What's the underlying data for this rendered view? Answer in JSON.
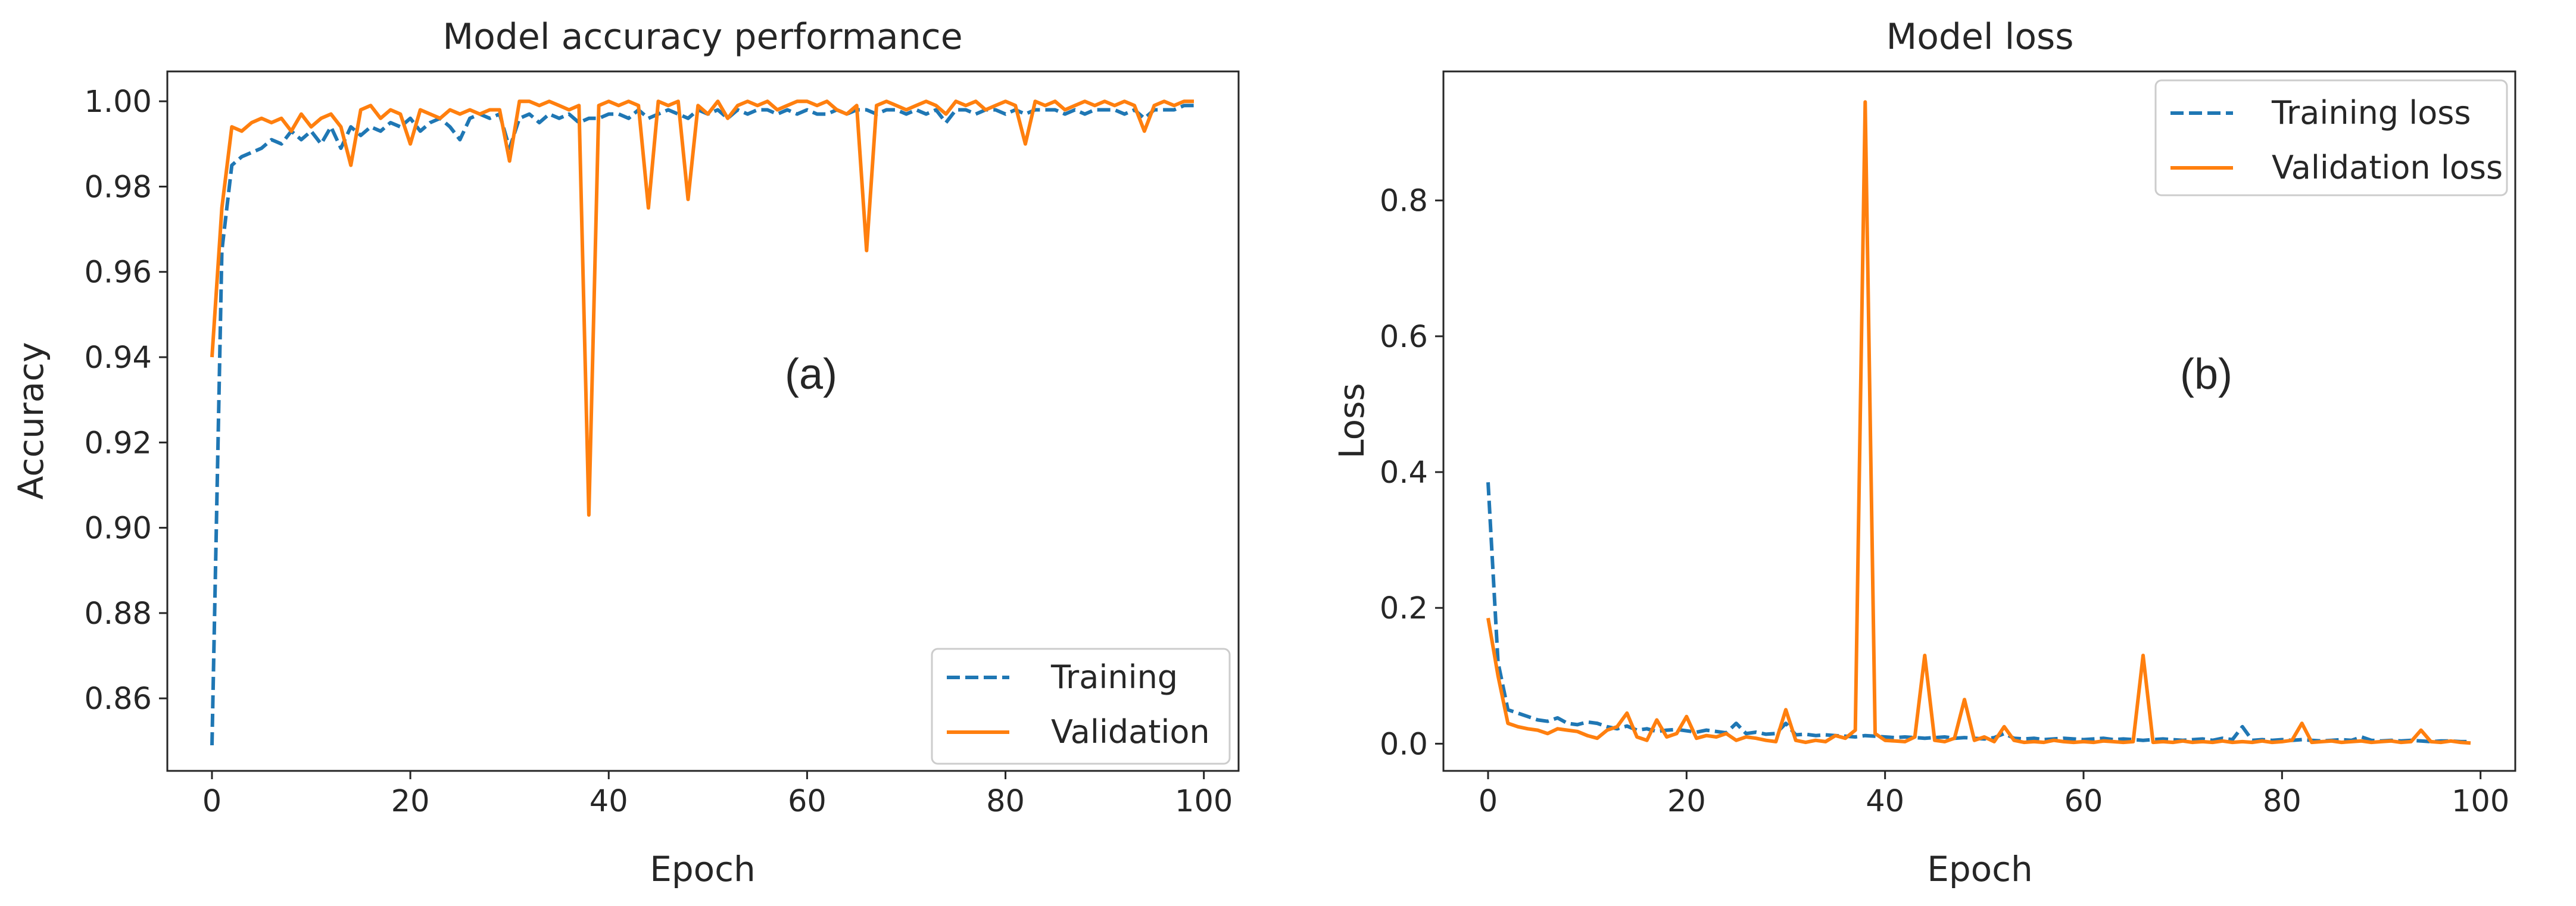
{
  "chart_data": [
    {
      "type": "line",
      "title": "Model accuracy performance",
      "xlabel": "Epoch",
      "ylabel": "Accuracy",
      "annotation": "(a)",
      "xlim": [
        -4.5,
        103.5
      ],
      "ylim": [
        0.843,
        1.007
      ],
      "xticks": [
        0,
        20,
        40,
        60,
        80,
        100
      ],
      "yticks": [
        0.86,
        0.88,
        0.9,
        0.92,
        0.94,
        0.96,
        0.98,
        1.0
      ],
      "ytick_labels": [
        "0.86",
        "0.88",
        "0.90",
        "0.92",
        "0.94",
        "0.96",
        "0.98",
        "1.00"
      ],
      "legend_position": "lower-right",
      "series": [
        {
          "name": "Training",
          "color": "#1f77b4",
          "dash": "dashed",
          "x": [
            0,
            1,
            2,
            3,
            4,
            5,
            6,
            7,
            8,
            9,
            10,
            11,
            12,
            13,
            14,
            15,
            16,
            17,
            18,
            19,
            20,
            21,
            22,
            23,
            24,
            25,
            26,
            27,
            28,
            29,
            30,
            31,
            32,
            33,
            34,
            35,
            36,
            37,
            38,
            39,
            40,
            41,
            42,
            43,
            44,
            45,
            46,
            47,
            48,
            49,
            50,
            51,
            52,
            53,
            54,
            55,
            56,
            57,
            58,
            59,
            60,
            61,
            62,
            63,
            64,
            65,
            66,
            67,
            68,
            69,
            70,
            71,
            72,
            73,
            74,
            75,
            76,
            77,
            78,
            79,
            80,
            81,
            82,
            83,
            84,
            85,
            86,
            87,
            88,
            89,
            90,
            91,
            92,
            93,
            94,
            95,
            96,
            97,
            98,
            99
          ],
          "values": [
            0.849,
            0.965,
            0.985,
            0.987,
            0.988,
            0.989,
            0.991,
            0.99,
            0.993,
            0.991,
            0.993,
            0.99,
            0.994,
            0.989,
            0.994,
            0.992,
            0.994,
            0.993,
            0.995,
            0.994,
            0.996,
            0.993,
            0.995,
            0.996,
            0.994,
            0.991,
            0.996,
            0.997,
            0.996,
            0.997,
            0.989,
            0.996,
            0.997,
            0.995,
            0.997,
            0.996,
            0.997,
            0.995,
            0.996,
            0.996,
            0.997,
            0.997,
            0.996,
            0.998,
            0.996,
            0.997,
            0.998,
            0.997,
            0.996,
            0.998,
            0.997,
            0.998,
            0.996,
            0.998,
            0.997,
            0.998,
            0.998,
            0.997,
            0.998,
            0.997,
            0.998,
            0.997,
            0.997,
            0.998,
            0.997,
            0.998,
            0.998,
            0.997,
            0.998,
            0.998,
            0.997,
            0.998,
            0.997,
            0.998,
            0.995,
            0.998,
            0.998,
            0.997,
            0.998,
            0.998,
            0.997,
            0.998,
            0.997,
            0.998,
            0.998,
            0.998,
            0.997,
            0.998,
            0.997,
            0.998,
            0.998,
            0.998,
            0.997,
            0.998,
            0.996,
            0.998,
            0.998,
            0.998,
            0.999,
            0.999
          ]
        },
        {
          "name": "Validation",
          "color": "#ff7f0e",
          "dash": "solid",
          "x": [
            0,
            1,
            2,
            3,
            4,
            5,
            6,
            7,
            8,
            9,
            10,
            11,
            12,
            13,
            14,
            15,
            16,
            17,
            18,
            19,
            20,
            21,
            22,
            23,
            24,
            25,
            26,
            27,
            28,
            29,
            30,
            31,
            32,
            33,
            34,
            35,
            36,
            37,
            38,
            39,
            40,
            41,
            42,
            43,
            44,
            45,
            46,
            47,
            48,
            49,
            50,
            51,
            52,
            53,
            54,
            55,
            56,
            57,
            58,
            59,
            60,
            61,
            62,
            63,
            64,
            65,
            66,
            67,
            68,
            69,
            70,
            71,
            72,
            73,
            74,
            75,
            76,
            77,
            78,
            79,
            80,
            81,
            82,
            83,
            84,
            85,
            86,
            87,
            88,
            89,
            90,
            91,
            92,
            93,
            94,
            95,
            96,
            97,
            98,
            99
          ],
          "values": [
            0.94,
            0.975,
            0.994,
            0.993,
            0.995,
            0.996,
            0.995,
            0.996,
            0.993,
            0.997,
            0.994,
            0.996,
            0.997,
            0.994,
            0.985,
            0.998,
            0.999,
            0.996,
            0.998,
            0.997,
            0.99,
            0.998,
            0.997,
            0.996,
            0.998,
            0.997,
            0.998,
            0.997,
            0.998,
            0.998,
            0.986,
            1.0,
            1.0,
            0.999,
            1.0,
            0.999,
            0.998,
            0.999,
            0.903,
            0.999,
            1.0,
            0.999,
            1.0,
            0.999,
            0.975,
            1.0,
            0.999,
            1.0,
            0.977,
            0.999,
            0.997,
            1.0,
            0.996,
            0.999,
            1.0,
            0.999,
            1.0,
            0.998,
            0.999,
            1.0,
            1.0,
            0.999,
            1.0,
            0.998,
            0.997,
            0.999,
            0.965,
            0.999,
            1.0,
            0.999,
            0.998,
            0.999,
            1.0,
            0.999,
            0.997,
            1.0,
            0.999,
            1.0,
            0.998,
            0.999,
            1.0,
            0.999,
            0.99,
            1.0,
            0.999,
            1.0,
            0.998,
            0.999,
            1.0,
            0.999,
            1.0,
            0.999,
            1.0,
            0.999,
            0.993,
            0.999,
            1.0,
            0.999,
            1.0,
            1.0
          ]
        }
      ]
    },
    {
      "type": "line",
      "title": "Model loss",
      "xlabel": "Epoch",
      "ylabel": "Loss",
      "annotation": "(b)",
      "xlim": [
        -4.5,
        103.5
      ],
      "ylim": [
        -0.04,
        0.99
      ],
      "xticks": [
        0,
        20,
        40,
        60,
        80,
        100
      ],
      "yticks": [
        0.0,
        0.2,
        0.4,
        0.6,
        0.8
      ],
      "ytick_labels": [
        "0.0",
        "0.2",
        "0.4",
        "0.6",
        "0.8"
      ],
      "legend_position": "upper-right",
      "series": [
        {
          "name": "Training loss",
          "color": "#1f77b4",
          "dash": "dashed",
          "x": [
            0,
            1,
            2,
            3,
            4,
            5,
            6,
            7,
            8,
            9,
            10,
            11,
            12,
            13,
            14,
            15,
            16,
            17,
            18,
            19,
            20,
            21,
            22,
            23,
            24,
            25,
            26,
            27,
            28,
            29,
            30,
            31,
            32,
            33,
            34,
            35,
            36,
            37,
            38,
            39,
            40,
            41,
            42,
            43,
            44,
            45,
            46,
            47,
            48,
            49,
            50,
            51,
            52,
            53,
            54,
            55,
            56,
            57,
            58,
            59,
            60,
            61,
            62,
            63,
            64,
            65,
            66,
            67,
            68,
            69,
            70,
            71,
            72,
            73,
            74,
            75,
            76,
            77,
            78,
            79,
            80,
            81,
            82,
            83,
            84,
            85,
            86,
            87,
            88,
            89,
            90,
            91,
            92,
            93,
            94,
            95,
            96,
            97,
            98,
            99
          ],
          "values": [
            0.385,
            0.12,
            0.05,
            0.045,
            0.04,
            0.035,
            0.033,
            0.038,
            0.03,
            0.028,
            0.032,
            0.03,
            0.025,
            0.022,
            0.026,
            0.02,
            0.022,
            0.018,
            0.02,
            0.021,
            0.019,
            0.017,
            0.02,
            0.018,
            0.016,
            0.03,
            0.015,
            0.017,
            0.014,
            0.015,
            0.03,
            0.013,
            0.014,
            0.012,
            0.013,
            0.012,
            0.011,
            0.01,
            0.012,
            0.011,
            0.01,
            0.009,
            0.01,
            0.009,
            0.008,
            0.009,
            0.01,
            0.008,
            0.009,
            0.008,
            0.007,
            0.009,
            0.015,
            0.008,
            0.007,
            0.008,
            0.006,
            0.007,
            0.008,
            0.007,
            0.006,
            0.007,
            0.008,
            0.006,
            0.007,
            0.006,
            0.005,
            0.006,
            0.007,
            0.006,
            0.005,
            0.006,
            0.007,
            0.005,
            0.008,
            0.006,
            0.025,
            0.005,
            0.006,
            0.005,
            0.006,
            0.005,
            0.006,
            0.005,
            0.004,
            0.005,
            0.006,
            0.005,
            0.01,
            0.005,
            0.004,
            0.005,
            0.004,
            0.005,
            0.004,
            0.003,
            0.004,
            0.004,
            0.003,
            0.003
          ]
        },
        {
          "name": "Validation loss",
          "color": "#ff7f0e",
          "dash": "solid",
          "x": [
            0,
            1,
            2,
            3,
            4,
            5,
            6,
            7,
            8,
            9,
            10,
            11,
            12,
            13,
            14,
            15,
            16,
            17,
            18,
            19,
            20,
            21,
            22,
            23,
            24,
            25,
            26,
            27,
            28,
            29,
            30,
            31,
            32,
            33,
            34,
            35,
            36,
            37,
            38,
            39,
            40,
            41,
            42,
            43,
            44,
            45,
            46,
            47,
            48,
            49,
            50,
            51,
            52,
            53,
            54,
            55,
            56,
            57,
            58,
            59,
            60,
            61,
            62,
            63,
            64,
            65,
            66,
            67,
            68,
            69,
            70,
            71,
            72,
            73,
            74,
            75,
            76,
            77,
            78,
            79,
            80,
            81,
            82,
            83,
            84,
            85,
            86,
            87,
            88,
            89,
            90,
            91,
            92,
            93,
            94,
            95,
            96,
            97,
            98,
            99
          ],
          "values": [
            0.185,
            0.1,
            0.03,
            0.025,
            0.022,
            0.02,
            0.015,
            0.022,
            0.02,
            0.018,
            0.012,
            0.008,
            0.02,
            0.025,
            0.045,
            0.01,
            0.005,
            0.035,
            0.01,
            0.015,
            0.04,
            0.008,
            0.012,
            0.01,
            0.015,
            0.005,
            0.01,
            0.008,
            0.005,
            0.003,
            0.05,
            0.005,
            0.002,
            0.005,
            0.003,
            0.012,
            0.008,
            0.02,
            0.945,
            0.015,
            0.005,
            0.004,
            0.003,
            0.01,
            0.13,
            0.005,
            0.003,
            0.008,
            0.065,
            0.005,
            0.01,
            0.003,
            0.025,
            0.005,
            0.002,
            0.003,
            0.002,
            0.005,
            0.003,
            0.002,
            0.003,
            0.002,
            0.004,
            0.003,
            0.002,
            0.003,
            0.13,
            0.002,
            0.003,
            0.002,
            0.004,
            0.002,
            0.003,
            0.002,
            0.004,
            0.002,
            0.003,
            0.002,
            0.004,
            0.002,
            0.003,
            0.005,
            0.03,
            0.002,
            0.003,
            0.004,
            0.002,
            0.003,
            0.004,
            0.002,
            0.003,
            0.004,
            0.002,
            0.003,
            0.02,
            0.003,
            0.002,
            0.004,
            0.002,
            0.001
          ]
        }
      ]
    }
  ]
}
